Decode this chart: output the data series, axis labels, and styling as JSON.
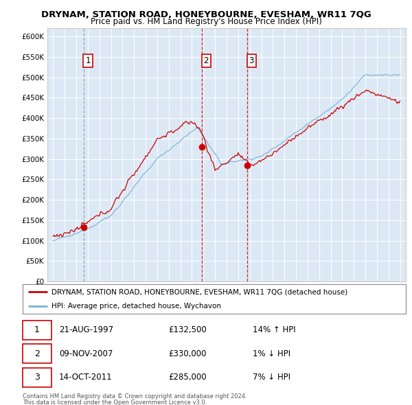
{
  "title": "DRYNAM, STATION ROAD, HONEYBOURNE, EVESHAM, WR11 7QG",
  "subtitle": "Price paid vs. HM Land Registry's House Price Index (HPI)",
  "plot_bg": "#dce9f5",
  "ylim": [
    0,
    620000
  ],
  "yticks": [
    0,
    50000,
    100000,
    150000,
    200000,
    250000,
    300000,
    350000,
    400000,
    450000,
    500000,
    550000,
    600000
  ],
  "ytick_labels": [
    "£0",
    "£50K",
    "£100K",
    "£150K",
    "£200K",
    "£250K",
    "£300K",
    "£350K",
    "£400K",
    "£450K",
    "£500K",
    "£550K",
    "£600K"
  ],
  "xlim_start": 1994.5,
  "xlim_end": 2025.5,
  "sale_dates": [
    1997.64,
    2007.86,
    2011.79
  ],
  "sale_prices": [
    132500,
    330000,
    285000
  ],
  "sale_labels": [
    "1",
    "2",
    "3"
  ],
  "legend_line1": "DRYNAM, STATION ROAD, HONEYBOURNE, EVESHAM, WR11 7QG (detached house)",
  "legend_line2": "HPI: Average price, detached house, Wychavon",
  "table_rows": [
    [
      "1",
      "21-AUG-1997",
      "£132,500",
      "14% ↑ HPI"
    ],
    [
      "2",
      "09-NOV-2007",
      "£330,000",
      "1% ↓ HPI"
    ],
    [
      "3",
      "14-OCT-2011",
      "£285,000",
      "7% ↓ HPI"
    ]
  ],
  "footer1": "Contains HM Land Registry data © Crown copyright and database right 2024.",
  "footer2": "This data is licensed under the Open Government Licence v3.0.",
  "red_color": "#cc0000",
  "blue_color": "#7bafd4",
  "sale1_vline_color": "#8899aa",
  "sale23_vline_color": "#cc0000"
}
